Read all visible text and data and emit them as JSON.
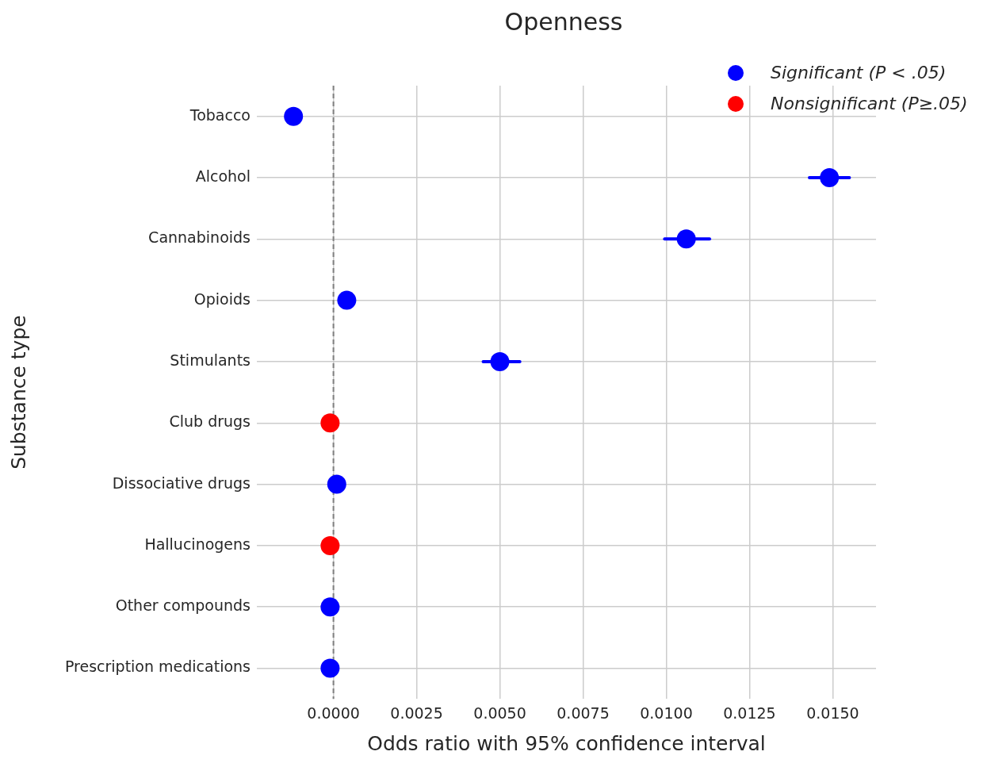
{
  "chart_data": {
    "type": "scatter",
    "title": "Openness",
    "xlabel": "Odds ratio with 95% confidence interval",
    "ylabel": "Substance type",
    "orientation": "horizontal",
    "categories": [
      "Tobacco",
      "Alcohol",
      "Cannabinoids",
      "Opioids",
      "Stimulants",
      "Club drugs",
      "Dissociative drugs",
      "Hallucinogens",
      "Other compounds",
      "Prescription medications"
    ],
    "series": [
      {
        "name": "Significant (P < .05)",
        "color": "#0000ff",
        "values": [
          -0.0012,
          0.0149,
          0.0106,
          0.0004,
          0.005,
          null,
          0.0001,
          null,
          -0.0001,
          -0.0001
        ],
        "errors": [
          null,
          [
            0.0143,
            0.0155
          ],
          [
            0.00995,
            0.0113
          ],
          null,
          [
            0.0045,
            0.0056
          ],
          null,
          null,
          null,
          null,
          null
        ]
      },
      {
        "name": "Nonsignificant (P≥.05)",
        "color": "#ff0000",
        "values": [
          null,
          null,
          null,
          null,
          null,
          -0.0001,
          null,
          -0.0001,
          null,
          null
        ]
      }
    ],
    "xlim": [
      -0.0023,
      0.0163
    ],
    "xticks": [
      {
        "value": 0,
        "label": "0.0000"
      },
      {
        "value": 0.0025,
        "label": "0.0025"
      },
      {
        "value": 0.005,
        "label": "0.0050"
      },
      {
        "value": 0.0075,
        "label": "0.0075"
      },
      {
        "value": 0.01,
        "label": "0.0100"
      },
      {
        "value": 0.0125,
        "label": "0.0125"
      },
      {
        "value": 0.015,
        "label": "0.0150"
      }
    ],
    "ref_lines": [
      {
        "axis": "x",
        "value": 0,
        "color": "#808080",
        "line_style": "dashed"
      }
    ],
    "grid": true,
    "legend": "top right",
    "marker": "circle"
  }
}
